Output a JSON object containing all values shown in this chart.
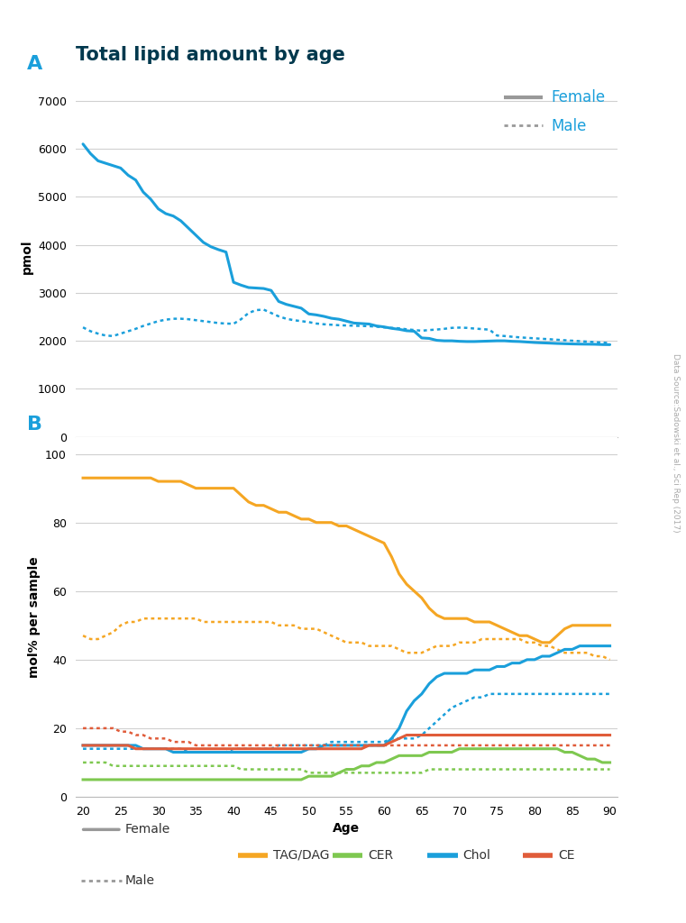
{
  "title": "Total lipid amount by age",
  "title_color": "#00384d",
  "watermark": "Data Source:Sadowski et al., Sci Rep (2017)",
  "panel_A_label": "A",
  "panel_B_label": "B",
  "xlabel": "Age",
  "ylabel_A": "pmol",
  "ylabel_B": "mol% per sample",
  "age_ticks": [
    20,
    25,
    30,
    35,
    40,
    45,
    50,
    55,
    60,
    65,
    70,
    75,
    80,
    85,
    90
  ],
  "blue_line_color": "#1a9fdb",
  "gray_legend_color": "#999999",
  "panel_label_color": "#1a9fdb",
  "grid_color": "#d0d0d0",
  "spine_color": "#bbbbbb",
  "panel_A": {
    "female_solid": {
      "color": "#1a9fdb",
      "ages": [
        20,
        21,
        22,
        23,
        24,
        25,
        26,
        27,
        28,
        29,
        30,
        31,
        32,
        33,
        34,
        35,
        36,
        37,
        38,
        39,
        40,
        41,
        42,
        43,
        44,
        45,
        46,
        47,
        48,
        49,
        50,
        51,
        52,
        53,
        54,
        55,
        56,
        57,
        58,
        59,
        60,
        61,
        62,
        63,
        64,
        65,
        66,
        67,
        68,
        69,
        70,
        71,
        72,
        73,
        74,
        75,
        76,
        77,
        78,
        79,
        80,
        81,
        82,
        83,
        84,
        85,
        86,
        87,
        88,
        89,
        90
      ],
      "values": [
        6100,
        5900,
        5750,
        5700,
        5650,
        5600,
        5450,
        5350,
        5100,
        4950,
        4750,
        4650,
        4600,
        4500,
        4350,
        4200,
        4050,
        3960,
        3900,
        3850,
        3220,
        3160,
        3110,
        3100,
        3090,
        3050,
        2820,
        2760,
        2720,
        2680,
        2560,
        2540,
        2510,
        2470,
        2450,
        2410,
        2370,
        2360,
        2350,
        2310,
        2290,
        2260,
        2240,
        2210,
        2200,
        2060,
        2050,
        2010,
        2000,
        2000,
        1990,
        1985,
        1985,
        1990,
        1995,
        2000,
        2000,
        1990,
        1985,
        1975,
        1965,
        1958,
        1952,
        1945,
        1940,
        1935,
        1932,
        1930,
        1928,
        1922,
        1920
      ]
    },
    "male_dotted": {
      "color": "#1a9fdb",
      "ages": [
        20,
        21,
        22,
        23,
        24,
        25,
        26,
        27,
        28,
        29,
        30,
        31,
        32,
        33,
        34,
        35,
        36,
        37,
        38,
        39,
        40,
        41,
        42,
        43,
        44,
        45,
        46,
        47,
        48,
        49,
        50,
        51,
        52,
        53,
        54,
        55,
        56,
        57,
        58,
        59,
        60,
        61,
        62,
        63,
        64,
        65,
        66,
        67,
        68,
        69,
        70,
        71,
        72,
        73,
        74,
        75,
        76,
        77,
        78,
        79,
        80,
        81,
        82,
        83,
        84,
        85,
        86,
        87,
        88,
        89,
        90
      ],
      "values": [
        2280,
        2200,
        2150,
        2110,
        2100,
        2150,
        2200,
        2250,
        2310,
        2360,
        2410,
        2440,
        2460,
        2460,
        2450,
        2430,
        2410,
        2390,
        2370,
        2360,
        2355,
        2450,
        2580,
        2640,
        2650,
        2580,
        2510,
        2460,
        2430,
        2410,
        2390,
        2360,
        2345,
        2335,
        2325,
        2320,
        2315,
        2310,
        2305,
        2295,
        2280,
        2270,
        2260,
        2240,
        2225,
        2210,
        2225,
        2235,
        2250,
        2270,
        2275,
        2270,
        2255,
        2245,
        2232,
        2110,
        2100,
        2085,
        2072,
        2062,
        2052,
        2042,
        2033,
        2022,
        2012,
        2002,
        1993,
        1983,
        1973,
        1963,
        1953
      ]
    }
  },
  "panel_B": {
    "TAG_female": {
      "color": "#f5a623",
      "ages": [
        20,
        21,
        22,
        23,
        24,
        25,
        26,
        27,
        28,
        29,
        30,
        31,
        32,
        33,
        34,
        35,
        36,
        37,
        38,
        39,
        40,
        41,
        42,
        43,
        44,
        45,
        46,
        47,
        48,
        49,
        50,
        51,
        52,
        53,
        54,
        55,
        56,
        57,
        58,
        59,
        60,
        61,
        62,
        63,
        64,
        65,
        66,
        67,
        68,
        69,
        70,
        71,
        72,
        73,
        74,
        75,
        76,
        77,
        78,
        79,
        80,
        81,
        82,
        83,
        84,
        85,
        86,
        87,
        88,
        89,
        90
      ],
      "values": [
        93,
        93,
        93,
        93,
        93,
        93,
        93,
        93,
        93,
        93,
        92,
        92,
        92,
        92,
        91,
        90,
        90,
        90,
        90,
        90,
        90,
        88,
        86,
        85,
        85,
        84,
        83,
        83,
        82,
        81,
        81,
        80,
        80,
        80,
        79,
        79,
        78,
        77,
        76,
        75,
        74,
        70,
        65,
        62,
        60,
        58,
        55,
        53,
        52,
        52,
        52,
        52,
        51,
        51,
        51,
        50,
        49,
        48,
        47,
        47,
        46,
        45,
        45,
        47,
        49,
        50,
        50,
        50,
        50,
        50,
        50
      ]
    },
    "TAG_male": {
      "color": "#f5a623",
      "ages": [
        20,
        21,
        22,
        23,
        24,
        25,
        26,
        27,
        28,
        29,
        30,
        31,
        32,
        33,
        34,
        35,
        36,
        37,
        38,
        39,
        40,
        41,
        42,
        43,
        44,
        45,
        46,
        47,
        48,
        49,
        50,
        51,
        52,
        53,
        54,
        55,
        56,
        57,
        58,
        59,
        60,
        61,
        62,
        63,
        64,
        65,
        66,
        67,
        68,
        69,
        70,
        71,
        72,
        73,
        74,
        75,
        76,
        77,
        78,
        79,
        80,
        81,
        82,
        83,
        84,
        85,
        86,
        87,
        88,
        89,
        90
      ],
      "values": [
        47,
        46,
        46,
        47,
        48,
        50,
        51,
        51,
        52,
        52,
        52,
        52,
        52,
        52,
        52,
        52,
        51,
        51,
        51,
        51,
        51,
        51,
        51,
        51,
        51,
        51,
        50,
        50,
        50,
        49,
        49,
        49,
        48,
        47,
        46,
        45,
        45,
        45,
        44,
        44,
        44,
        44,
        43,
        42,
        42,
        42,
        43,
        44,
        44,
        44,
        45,
        45,
        45,
        46,
        46,
        46,
        46,
        46,
        46,
        45,
        45,
        44,
        44,
        43,
        42,
        42,
        42,
        42,
        41,
        41,
        40
      ]
    },
    "CER_female": {
      "color": "#7ec850",
      "ages": [
        20,
        21,
        22,
        23,
        24,
        25,
        26,
        27,
        28,
        29,
        30,
        31,
        32,
        33,
        34,
        35,
        36,
        37,
        38,
        39,
        40,
        41,
        42,
        43,
        44,
        45,
        46,
        47,
        48,
        49,
        50,
        51,
        52,
        53,
        54,
        55,
        56,
        57,
        58,
        59,
        60,
        61,
        62,
        63,
        64,
        65,
        66,
        67,
        68,
        69,
        70,
        71,
        72,
        73,
        74,
        75,
        76,
        77,
        78,
        79,
        80,
        81,
        82,
        83,
        84,
        85,
        86,
        87,
        88,
        89,
        90
      ],
      "values": [
        5,
        5,
        5,
        5,
        5,
        5,
        5,
        5,
        5,
        5,
        5,
        5,
        5,
        5,
        5,
        5,
        5,
        5,
        5,
        5,
        5,
        5,
        5,
        5,
        5,
        5,
        5,
        5,
        5,
        5,
        6,
        6,
        6,
        6,
        7,
        8,
        8,
        9,
        9,
        10,
        10,
        11,
        12,
        12,
        12,
        12,
        13,
        13,
        13,
        13,
        14,
        14,
        14,
        14,
        14,
        14,
        14,
        14,
        14,
        14,
        14,
        14,
        14,
        14,
        13,
        13,
        12,
        11,
        11,
        10,
        10
      ]
    },
    "CER_male": {
      "color": "#7ec850",
      "ages": [
        20,
        21,
        22,
        23,
        24,
        25,
        26,
        27,
        28,
        29,
        30,
        31,
        32,
        33,
        34,
        35,
        36,
        37,
        38,
        39,
        40,
        41,
        42,
        43,
        44,
        45,
        46,
        47,
        48,
        49,
        50,
        51,
        52,
        53,
        54,
        55,
        56,
        57,
        58,
        59,
        60,
        61,
        62,
        63,
        64,
        65,
        66,
        67,
        68,
        69,
        70,
        71,
        72,
        73,
        74,
        75,
        76,
        77,
        78,
        79,
        80,
        81,
        82,
        83,
        84,
        85,
        86,
        87,
        88,
        89,
        90
      ],
      "values": [
        10,
        10,
        10,
        10,
        9,
        9,
        9,
        9,
        9,
        9,
        9,
        9,
        9,
        9,
        9,
        9,
        9,
        9,
        9,
        9,
        9,
        8,
        8,
        8,
        8,
        8,
        8,
        8,
        8,
        8,
        7,
        7,
        7,
        7,
        7,
        7,
        7,
        7,
        7,
        7,
        7,
        7,
        7,
        7,
        7,
        7,
        8,
        8,
        8,
        8,
        8,
        8,
        8,
        8,
        8,
        8,
        8,
        8,
        8,
        8,
        8,
        8,
        8,
        8,
        8,
        8,
        8,
        8,
        8,
        8,
        8
      ]
    },
    "Chol_female": {
      "color": "#1a9fdb",
      "ages": [
        20,
        21,
        22,
        23,
        24,
        25,
        26,
        27,
        28,
        29,
        30,
        31,
        32,
        33,
        34,
        35,
        36,
        37,
        38,
        39,
        40,
        41,
        42,
        43,
        44,
        45,
        46,
        47,
        48,
        49,
        50,
        51,
        52,
        53,
        54,
        55,
        56,
        57,
        58,
        59,
        60,
        61,
        62,
        63,
        64,
        65,
        66,
        67,
        68,
        69,
        70,
        71,
        72,
        73,
        74,
        75,
        76,
        77,
        78,
        79,
        80,
        81,
        82,
        83,
        84,
        85,
        86,
        87,
        88,
        89,
        90
      ],
      "values": [
        15,
        15,
        15,
        15,
        15,
        15,
        15,
        15,
        14,
        14,
        14,
        14,
        13,
        13,
        13,
        13,
        13,
        13,
        13,
        13,
        13,
        13,
        13,
        13,
        13,
        13,
        13,
        13,
        13,
        13,
        14,
        14,
        15,
        15,
        15,
        15,
        15,
        15,
        15,
        15,
        15,
        17,
        20,
        25,
        28,
        30,
        33,
        35,
        36,
        36,
        36,
        36,
        37,
        37,
        37,
        38,
        38,
        39,
        39,
        40,
        40,
        41,
        41,
        42,
        43,
        43,
        44,
        44,
        44,
        44,
        44
      ]
    },
    "Chol_male": {
      "color": "#1a9fdb",
      "ages": [
        20,
        21,
        22,
        23,
        24,
        25,
        26,
        27,
        28,
        29,
        30,
        31,
        32,
        33,
        34,
        35,
        36,
        37,
        38,
        39,
        40,
        41,
        42,
        43,
        44,
        45,
        46,
        47,
        48,
        49,
        50,
        51,
        52,
        53,
        54,
        55,
        56,
        57,
        58,
        59,
        60,
        61,
        62,
        63,
        64,
        65,
        66,
        67,
        68,
        69,
        70,
        71,
        72,
        73,
        74,
        75,
        76,
        77,
        78,
        79,
        80,
        81,
        82,
        83,
        84,
        85,
        86,
        87,
        88,
        89,
        90
      ],
      "values": [
        14,
        14,
        14,
        14,
        14,
        14,
        14,
        14,
        14,
        14,
        14,
        14,
        14,
        14,
        13,
        13,
        13,
        13,
        13,
        13,
        14,
        14,
        14,
        14,
        14,
        14,
        15,
        15,
        15,
        15,
        15,
        15,
        15,
        16,
        16,
        16,
        16,
        16,
        16,
        16,
        16,
        17,
        17,
        17,
        17,
        18,
        20,
        22,
        24,
        26,
        27,
        28,
        29,
        29,
        30,
        30,
        30,
        30,
        30,
        30,
        30,
        30,
        30,
        30,
        30,
        30,
        30,
        30,
        30,
        30,
        30
      ]
    },
    "CE_female": {
      "color": "#e05c3a",
      "ages": [
        20,
        21,
        22,
        23,
        24,
        25,
        26,
        27,
        28,
        29,
        30,
        31,
        32,
        33,
        34,
        35,
        36,
        37,
        38,
        39,
        40,
        41,
        42,
        43,
        44,
        45,
        46,
        47,
        48,
        49,
        50,
        51,
        52,
        53,
        54,
        55,
        56,
        57,
        58,
        59,
        60,
        61,
        62,
        63,
        64,
        65,
        66,
        67,
        68,
        69,
        70,
        71,
        72,
        73,
        74,
        75,
        76,
        77,
        78,
        79,
        80,
        81,
        82,
        83,
        84,
        85,
        86,
        87,
        88,
        89,
        90
      ],
      "values": [
        15,
        15,
        15,
        15,
        15,
        15,
        15,
        14,
        14,
        14,
        14,
        14,
        14,
        14,
        14,
        14,
        14,
        14,
        14,
        14,
        14,
        14,
        14,
        14,
        14,
        14,
        14,
        14,
        14,
        14,
        14,
        14,
        14,
        14,
        14,
        14,
        14,
        14,
        15,
        15,
        15,
        16,
        17,
        18,
        18,
        18,
        18,
        18,
        18,
        18,
        18,
        18,
        18,
        18,
        18,
        18,
        18,
        18,
        18,
        18,
        18,
        18,
        18,
        18,
        18,
        18,
        18,
        18,
        18,
        18,
        18
      ]
    },
    "CE_male": {
      "color": "#e05c3a",
      "ages": [
        20,
        21,
        22,
        23,
        24,
        25,
        26,
        27,
        28,
        29,
        30,
        31,
        32,
        33,
        34,
        35,
        36,
        37,
        38,
        39,
        40,
        41,
        42,
        43,
        44,
        45,
        46,
        47,
        48,
        49,
        50,
        51,
        52,
        53,
        54,
        55,
        56,
        57,
        58,
        59,
        60,
        61,
        62,
        63,
        64,
        65,
        66,
        67,
        68,
        69,
        70,
        71,
        72,
        73,
        74,
        75,
        76,
        77,
        78,
        79,
        80,
        81,
        82,
        83,
        84,
        85,
        86,
        87,
        88,
        89,
        90
      ],
      "values": [
        20,
        20,
        20,
        20,
        20,
        19,
        19,
        18,
        18,
        17,
        17,
        17,
        16,
        16,
        16,
        15,
        15,
        15,
        15,
        15,
        15,
        15,
        15,
        15,
        15,
        15,
        15,
        15,
        15,
        15,
        15,
        15,
        15,
        15,
        15,
        15,
        15,
        15,
        15,
        15,
        15,
        15,
        15,
        15,
        15,
        15,
        15,
        15,
        15,
        15,
        15,
        15,
        15,
        15,
        15,
        15,
        15,
        15,
        15,
        15,
        15,
        15,
        15,
        15,
        15,
        15,
        15,
        15,
        15,
        15,
        15
      ]
    }
  },
  "legend_B_items": [
    {
      "label": "TAG/DAG",
      "color": "#f5a623"
    },
    {
      "label": "CER",
      "color": "#7ec850"
    },
    {
      "label": "Chol",
      "color": "#1a9fdb"
    },
    {
      "label": "CE",
      "color": "#e05c3a"
    }
  ]
}
